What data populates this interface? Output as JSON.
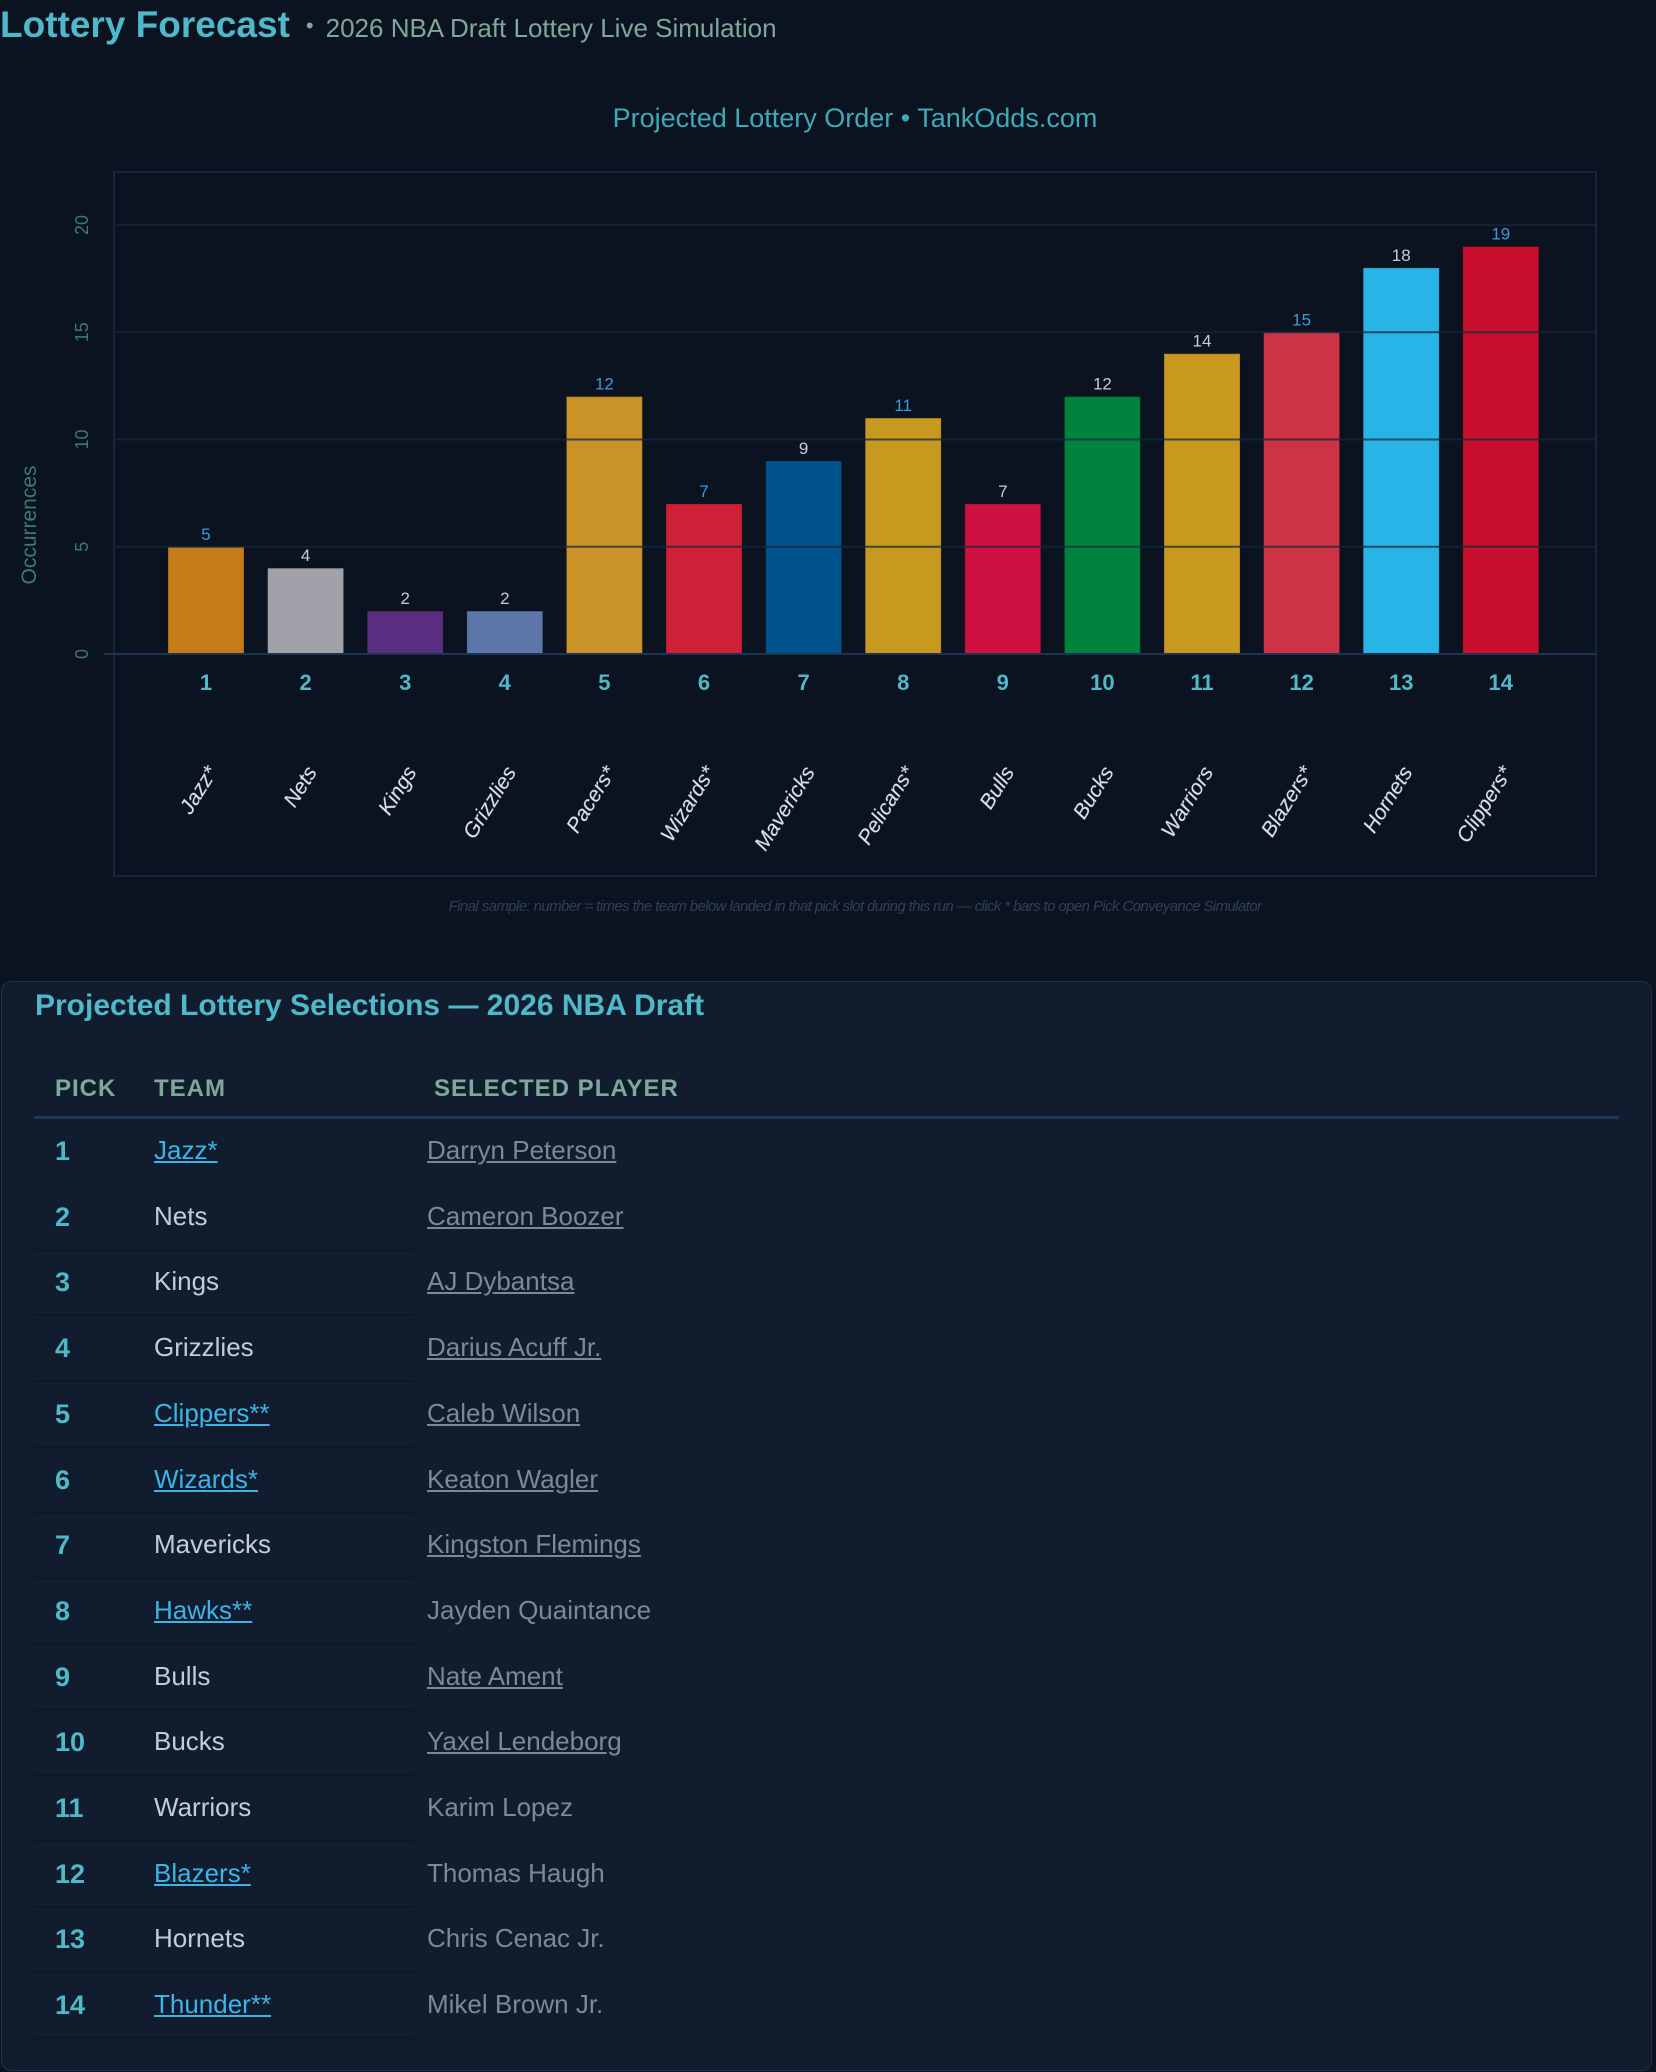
{
  "header": {
    "title": "Lottery Forecast",
    "separator": "•",
    "subtitle": "2026 NBA Draft Lottery Live Simulation"
  },
  "chart_data": {
    "type": "bar",
    "title": "Projected Lottery Order • TankOdds.com",
    "ylabel": "Occurrences",
    "xlabel": "",
    "ylim": [
      0,
      22
    ],
    "yticks": [
      0,
      5,
      10,
      15,
      20
    ],
    "grid": true,
    "categories": [
      "1",
      "2",
      "3",
      "4",
      "5",
      "6",
      "7",
      "8",
      "9",
      "10",
      "11",
      "12",
      "13",
      "14"
    ],
    "teams": [
      "Jazz*",
      "Nets",
      "Kings",
      "Grizzlies",
      "Pacers*",
      "Wizards*",
      "Mavericks",
      "Pelicans*",
      "Bulls",
      "Bucks",
      "Warriors",
      "Blazers*",
      "Hornets",
      "Clippers*"
    ],
    "values": [
      5,
      4,
      2,
      2,
      12,
      7,
      9,
      11,
      7,
      12,
      14,
      15,
      18,
      19
    ],
    "colors": [
      "#c47c18",
      "#a1a1aa",
      "#5a2d81",
      "#5d76a9",
      "#c99328",
      "#cf2038",
      "#00538c",
      "#c79a1f",
      "#ce1141",
      "#00843d",
      "#c79a1f",
      "#cc3344",
      "#29b4e8",
      "#c8102e"
    ],
    "note": "Final sample: number = times the team below landed in that pick slot during this run  —  click * bars to open Pick Conveyance Simulator"
  },
  "table": {
    "title": "Projected Lottery Selections — 2026 NBA Draft",
    "columns": [
      "PICK",
      "TEAM",
      "SELECTED PLAYER"
    ],
    "rows": [
      {
        "pick": "1",
        "team": "Jazz*",
        "team_link": true,
        "player": "Darryn Peterson",
        "player_link": true
      },
      {
        "pick": "2",
        "team": "Nets",
        "team_link": false,
        "player": "Cameron Boozer",
        "player_link": true
      },
      {
        "pick": "3",
        "team": "Kings",
        "team_link": false,
        "player": "AJ Dybantsa",
        "player_link": true
      },
      {
        "pick": "4",
        "team": "Grizzlies",
        "team_link": false,
        "player": "Darius Acuff Jr.",
        "player_link": true
      },
      {
        "pick": "5",
        "team": "Clippers**",
        "team_link": true,
        "player": "Caleb Wilson",
        "player_link": true
      },
      {
        "pick": "6",
        "team": "Wizards*",
        "team_link": true,
        "player": "Keaton Wagler",
        "player_link": true
      },
      {
        "pick": "7",
        "team": "Mavericks",
        "team_link": false,
        "player": "Kingston Flemings",
        "player_link": true
      },
      {
        "pick": "8",
        "team": "Hawks**",
        "team_link": true,
        "player": "Jayden Quaintance",
        "player_link": false
      },
      {
        "pick": "9",
        "team": "Bulls",
        "team_link": false,
        "player": "Nate Ament",
        "player_link": true
      },
      {
        "pick": "10",
        "team": "Bucks",
        "team_link": false,
        "player": "Yaxel Lendeborg",
        "player_link": true
      },
      {
        "pick": "11",
        "team": "Warriors",
        "team_link": false,
        "player": "Karim Lopez",
        "player_link": false
      },
      {
        "pick": "12",
        "team": "Blazers*",
        "team_link": true,
        "player": "Thomas Haugh",
        "player_link": false
      },
      {
        "pick": "13",
        "team": "Hornets",
        "team_link": false,
        "player": "Chris Cenac Jr.",
        "player_link": false
      },
      {
        "pick": "14",
        "team": "Thunder**",
        "team_link": true,
        "player": "Mikel Brown Jr.",
        "player_link": false
      }
    ]
  }
}
